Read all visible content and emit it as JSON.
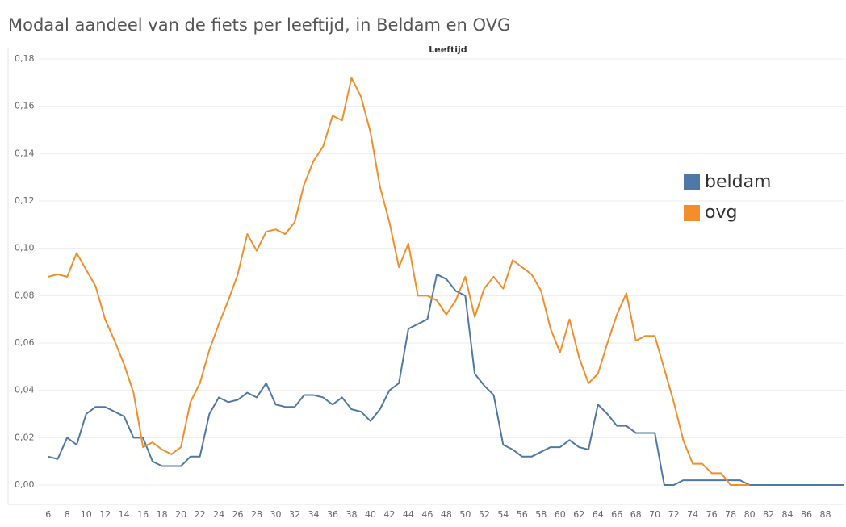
{
  "chart_data": {
    "type": "line",
    "title": "Modaal aandeel van de fiets per leeftijd, in Beldam en OVG",
    "x_label": "Leeftijd",
    "x": [
      6,
      7,
      8,
      9,
      10,
      11,
      12,
      13,
      14,
      15,
      16,
      17,
      18,
      19,
      20,
      21,
      22,
      23,
      24,
      25,
      26,
      27,
      28,
      29,
      30,
      31,
      32,
      33,
      34,
      35,
      36,
      37,
      38,
      39,
      40,
      41,
      42,
      43,
      44,
      45,
      46,
      47,
      48,
      49,
      50,
      51,
      52,
      53,
      54,
      55,
      56,
      57,
      58,
      59,
      60,
      61,
      62,
      63,
      64,
      65,
      66,
      67,
      68,
      69,
      70,
      71,
      72,
      73,
      74,
      75,
      76,
      77,
      78,
      79,
      80,
      81,
      82,
      83,
      84,
      85,
      86,
      87,
      88,
      89,
      90
    ],
    "series": [
      {
        "name": "beldam",
        "color": "#4e79a7",
        "values": [
          0.012,
          0.011,
          0.02,
          0.017,
          0.03,
          0.033,
          0.033,
          0.031,
          0.029,
          0.02,
          0.02,
          0.01,
          0.008,
          0.008,
          0.008,
          0.012,
          0.012,
          0.03,
          0.037,
          0.035,
          0.036,
          0.039,
          0.037,
          0.043,
          0.034,
          0.033,
          0.033,
          0.038,
          0.038,
          0.037,
          0.034,
          0.037,
          0.032,
          0.031,
          0.027,
          0.032,
          0.04,
          0.043,
          0.066,
          0.068,
          0.07,
          0.089,
          0.087,
          0.082,
          0.08,
          0.047,
          0.042,
          0.038,
          0.017,
          0.015,
          0.012,
          0.012,
          0.014,
          0.016,
          0.016,
          0.019,
          0.016,
          0.015,
          0.034,
          0.03,
          0.025,
          0.025,
          0.022,
          0.022,
          0.022,
          0.0,
          0.0,
          0.002,
          0.002,
          0.002,
          0.002,
          0.002,
          0.002,
          0.002,
          0,
          0,
          0,
          0,
          0,
          0,
          0,
          0,
          0,
          0,
          0
        ]
      },
      {
        "name": "ovg",
        "color": "#f28e2b",
        "values": [
          0.088,
          0.089,
          0.088,
          0.098,
          0.091,
          0.084,
          0.07,
          0.061,
          0.051,
          0.039,
          0.016,
          0.018,
          0.015,
          0.013,
          0.016,
          0.035,
          0.043,
          0.057,
          0.068,
          0.078,
          0.089,
          0.106,
          0.099,
          0.107,
          0.108,
          0.106,
          0.111,
          0.127,
          0.137,
          0.143,
          0.156,
          0.154,
          0.172,
          0.164,
          0.149,
          0.126,
          0.111,
          0.092,
          0.102,
          0.08,
          0.08,
          0.078,
          0.072,
          0.078,
          0.088,
          0.071,
          0.083,
          0.088,
          0.083,
          0.095,
          0.092,
          0.089,
          0.082,
          0.066,
          0.056,
          0.07,
          0.054,
          0.043,
          0.047,
          0.06,
          0.072,
          0.081,
          0.061,
          0.063,
          0.063,
          0.049,
          0.035,
          0.019,
          0.009,
          0.009,
          0.005,
          0.005,
          0.0,
          0.0,
          0.0,
          null,
          null,
          null,
          null,
          null,
          null,
          null,
          null,
          null,
          null
        ]
      }
    ],
    "xlim": [
      5,
      90
    ],
    "xticks": [
      6,
      8,
      10,
      12,
      14,
      16,
      18,
      20,
      22,
      24,
      26,
      28,
      30,
      32,
      34,
      36,
      38,
      40,
      42,
      44,
      46,
      48,
      50,
      52,
      54,
      56,
      58,
      60,
      62,
      64,
      66,
      68,
      70,
      72,
      74,
      76,
      78,
      80,
      82,
      84,
      86,
      88
    ],
    "ylim": [
      0,
      0.18
    ],
    "yticks": [
      {
        "value": 0,
        "label": "0,00"
      },
      {
        "value": 0.02,
        "label": "0,02"
      },
      {
        "value": 0.04,
        "label": "0,04"
      },
      {
        "value": 0.06,
        "label": "0,06"
      },
      {
        "value": 0.08,
        "label": "0,08"
      },
      {
        "value": 0.1,
        "label": "0,10"
      },
      {
        "value": 0.12,
        "label": "0,12"
      },
      {
        "value": 0.14,
        "label": "0,14"
      },
      {
        "value": 0.16,
        "label": "0,16"
      },
      {
        "value": 0.18,
        "label": "0,18"
      }
    ],
    "grid": true
  }
}
